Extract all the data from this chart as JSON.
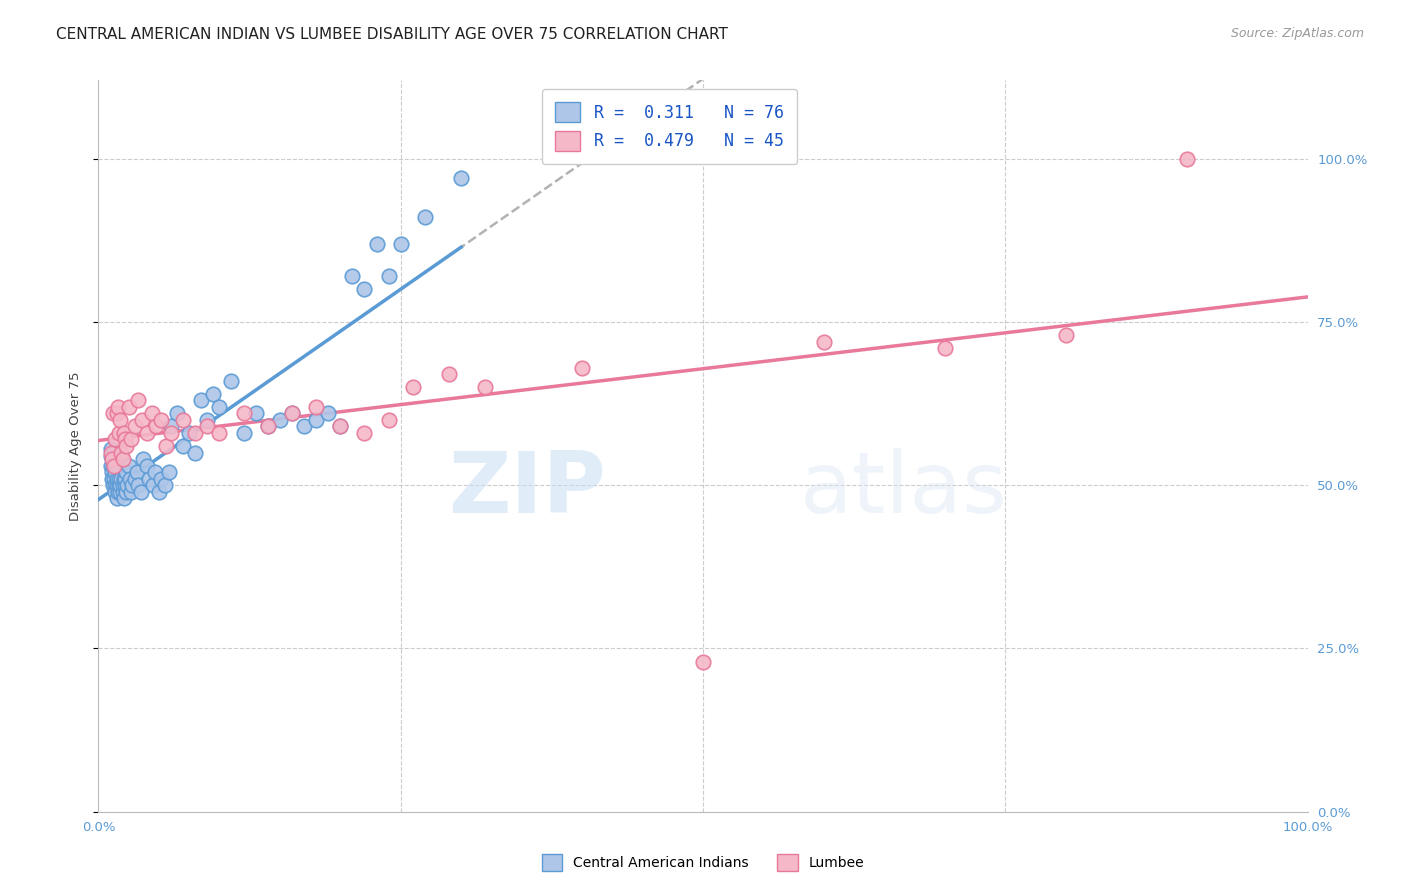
{
  "title": "CENTRAL AMERICAN INDIAN VS LUMBEE DISABILITY AGE OVER 75 CORRELATION CHART",
  "source": "Source: ZipAtlas.com",
  "ylabel": "Disability Age Over 75",
  "blue_color": "#5b9bd5",
  "pink_color": "#e8799a",
  "blue_fill": "#aec6e8",
  "pink_fill": "#f4b8c8",
  "blue_R": 0.311,
  "blue_N": 76,
  "pink_R": 0.479,
  "pink_N": 45,
  "blue_x": [
    0.01,
    0.01,
    0.01,
    0.011,
    0.011,
    0.012,
    0.012,
    0.013,
    0.013,
    0.013,
    0.014,
    0.014,
    0.014,
    0.015,
    0.015,
    0.015,
    0.016,
    0.016,
    0.017,
    0.017,
    0.018,
    0.018,
    0.019,
    0.019,
    0.02,
    0.02,
    0.021,
    0.021,
    0.022,
    0.022,
    0.023,
    0.023,
    0.024,
    0.025,
    0.026,
    0.027,
    0.028,
    0.03,
    0.032,
    0.033,
    0.035,
    0.037,
    0.04,
    0.042,
    0.045,
    0.047,
    0.05,
    0.052,
    0.055,
    0.058,
    0.06,
    0.065,
    0.07,
    0.075,
    0.08,
    0.085,
    0.09,
    0.095,
    0.1,
    0.11,
    0.12,
    0.13,
    0.14,
    0.15,
    0.16,
    0.17,
    0.18,
    0.19,
    0.2,
    0.21,
    0.22,
    0.23,
    0.24,
    0.25,
    0.27,
    0.3
  ],
  "blue_y": [
    0.545,
    0.555,
    0.53,
    0.52,
    0.51,
    0.5,
    0.53,
    0.54,
    0.55,
    0.51,
    0.5,
    0.52,
    0.49,
    0.5,
    0.51,
    0.48,
    0.49,
    0.53,
    0.5,
    0.51,
    0.49,
    0.5,
    0.51,
    0.54,
    0.49,
    0.5,
    0.51,
    0.48,
    0.5,
    0.51,
    0.49,
    0.52,
    0.5,
    0.53,
    0.51,
    0.49,
    0.5,
    0.51,
    0.52,
    0.5,
    0.49,
    0.54,
    0.53,
    0.51,
    0.5,
    0.52,
    0.49,
    0.51,
    0.5,
    0.52,
    0.59,
    0.61,
    0.56,
    0.58,
    0.55,
    0.63,
    0.6,
    0.64,
    0.62,
    0.66,
    0.58,
    0.61,
    0.59,
    0.6,
    0.61,
    0.59,
    0.6,
    0.61,
    0.59,
    0.82,
    0.8,
    0.87,
    0.82,
    0.87,
    0.91,
    0.97
  ],
  "pink_x": [
    0.01,
    0.011,
    0.012,
    0.013,
    0.014,
    0.015,
    0.016,
    0.017,
    0.018,
    0.019,
    0.02,
    0.021,
    0.022,
    0.023,
    0.025,
    0.027,
    0.03,
    0.033,
    0.036,
    0.04,
    0.044,
    0.048,
    0.052,
    0.056,
    0.06,
    0.07,
    0.08,
    0.09,
    0.1,
    0.12,
    0.14,
    0.16,
    0.18,
    0.2,
    0.22,
    0.24,
    0.26,
    0.29,
    0.32,
    0.4,
    0.5,
    0.6,
    0.7,
    0.8,
    0.9
  ],
  "pink_y": [
    0.55,
    0.54,
    0.61,
    0.53,
    0.57,
    0.61,
    0.62,
    0.58,
    0.6,
    0.55,
    0.54,
    0.58,
    0.57,
    0.56,
    0.62,
    0.57,
    0.59,
    0.63,
    0.6,
    0.58,
    0.61,
    0.59,
    0.6,
    0.56,
    0.58,
    0.6,
    0.58,
    0.59,
    0.58,
    0.61,
    0.59,
    0.61,
    0.62,
    0.59,
    0.58,
    0.6,
    0.65,
    0.67,
    0.65,
    0.68,
    0.23,
    0.72,
    0.71,
    0.73,
    1.0
  ],
  "xlim": [
    0.0,
    1.0
  ],
  "ylim": [
    0.0,
    1.12
  ],
  "grid_ticks": [
    0.0,
    0.25,
    0.5,
    0.75,
    1.0
  ],
  "right_ytick_labels": [
    "0.0%",
    "25.0%",
    "50.0%",
    "75.0%",
    "100.0%"
  ],
  "watermark_zip": "ZIP",
  "watermark_atlas": "atlas",
  "title_fontsize": 11,
  "source_fontsize": 9,
  "label_fontsize": 9.5,
  "tick_fontsize": 9.5,
  "legend_fontsize": 12
}
